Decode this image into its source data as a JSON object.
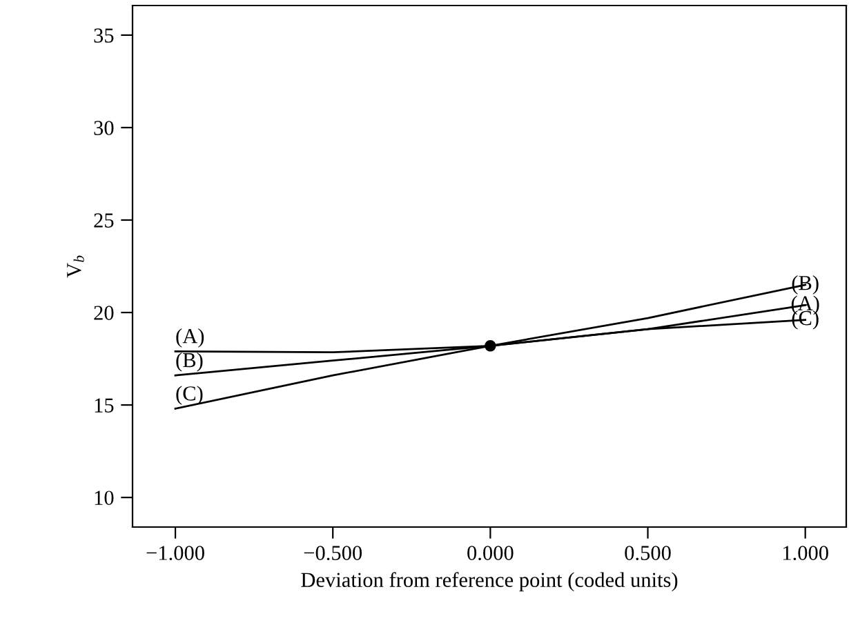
{
  "chart_data": {
    "type": "line",
    "xlabel": "Deviation from reference point (coded units)",
    "ylabel": "V$_{b}$",
    "x": [
      -1,
      -0.5,
      0,
      0.5,
      1
    ],
    "series": [
      {
        "name": "(A)",
        "color": "#000000",
        "values": [
          17.9,
          17.85,
          18.2,
          19.1,
          20.4
        ]
      },
      {
        "name": "(B)",
        "color": "#000000",
        "values": [
          16.6,
          17.4,
          18.2,
          19.7,
          21.5
        ]
      },
      {
        "name": "(C)",
        "color": "#000000",
        "values": [
          14.8,
          16.6,
          18.2,
          19.1,
          19.6
        ]
      },
      {
        "type": "scatter",
        "color": "#000000",
        "x": [
          0
        ],
        "values": [
          18.2
        ],
        "marker": "circle"
      }
    ],
    "xlim": [
      -1.136,
      1.13
    ],
    "ylim": [
      8.4,
      36.6
    ],
    "xticks": [
      {
        "value": -1,
        "label": "−1.000"
      },
      {
        "value": -0.5,
        "label": "−0.500"
      },
      {
        "value": 0,
        "label": "0.000"
      },
      {
        "value": 0.5,
        "label": "0.500"
      },
      {
        "value": 1,
        "label": "1.000"
      }
    ],
    "yticks": [
      10,
      15,
      20,
      25,
      30,
      35
    ],
    "grid": false,
    "legend": false,
    "marker": "none",
    "line_style": "solid"
  }
}
